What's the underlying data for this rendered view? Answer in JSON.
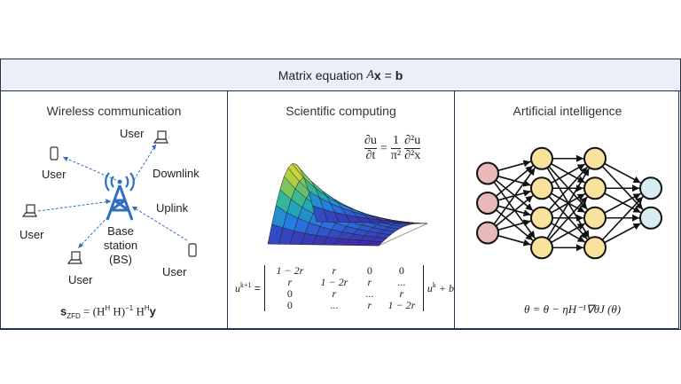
{
  "header": {
    "title_prefix": "Matrix equation ",
    "title_A": "A",
    "title_x": "x",
    "title_eq": " = ",
    "title_b": "b"
  },
  "panels": [
    {
      "title": "Wireless communication",
      "labels": {
        "user": "User",
        "downlink": "Downlink",
        "uplink": "Uplink",
        "bs_line1": "Base",
        "bs_line2": "station",
        "bs_line3": "(BS)"
      },
      "equation": {
        "s": "s",
        "sub": "ZFD",
        "rest": " = (H",
        "sup1": "H",
        "mid": " H)",
        "sup2": "−1",
        "h": " H",
        "sup3": "H",
        "y": "y"
      },
      "accent": "#2e6fbf"
    },
    {
      "title": "Scientific computing",
      "pde": {
        "lhs_num": "∂u",
        "lhs_den": "∂t",
        "eq": "=",
        "c_num": "1",
        "c_den": "π²",
        "rhs_num": "∂²u",
        "rhs_den": "∂²x"
      },
      "iteration": {
        "lhs": "u",
        "lhs_sup": "k+1",
        "eq": " =",
        "rhs": "u",
        "rhs_sup": "k",
        "plus_b": " + b"
      },
      "matrix": [
        [
          "1 − 2r",
          "r",
          "0",
          "0"
        ],
        [
          "r",
          "1 − 2r",
          "r",
          "..."
        ],
        [
          "0",
          "r",
          "...",
          "r"
        ],
        [
          "0",
          "...",
          "r",
          "1 − 2r"
        ]
      ]
    },
    {
      "title": "Artificial intelligence",
      "network": {
        "layers": [
          3,
          4,
          4,
          2
        ],
        "colors": [
          "#e9b8b8",
          "#f9e29c",
          "#f9e29c",
          "#d9ecf2"
        ]
      },
      "equation": "θ = θ − ηH⁻¹∇θJ (θ)"
    }
  ]
}
